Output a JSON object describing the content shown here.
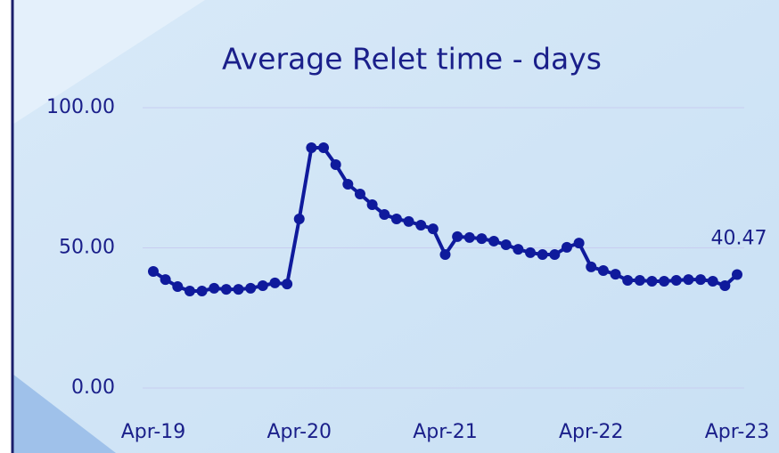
{
  "chart_data": {
    "type": "line",
    "title": "Average Relet time - days",
    "categories": [
      "Apr-19",
      null,
      null,
      null,
      null,
      null,
      null,
      null,
      null,
      null,
      null,
      null,
      "Apr-20",
      null,
      null,
      null,
      null,
      null,
      null,
      null,
      null,
      null,
      null,
      null,
      "Apr-21",
      null,
      null,
      null,
      null,
      null,
      null,
      null,
      null,
      null,
      null,
      null,
      "Apr-22",
      null,
      null,
      null,
      null,
      null,
      null,
      null,
      null,
      null,
      null,
      null,
      "Apr-23"
    ],
    "series": [
      {
        "name": "Average Relet time",
        "color": "#0f1a9c",
        "values": [
          41.6,
          38.7,
          36.2,
          34.6,
          34.6,
          35.6,
          35.2,
          35.2,
          35.6,
          36.5,
          37.5,
          37.1,
          60.3,
          85.7,
          85.7,
          79.7,
          72.7,
          69.2,
          65.4,
          61.9,
          60.3,
          59.4,
          58.1,
          56.8,
          47.6,
          54.0,
          53.7,
          53.3,
          52.4,
          51.1,
          49.5,
          48.3,
          47.6,
          47.6,
          50.2,
          51.7,
          43.2,
          41.9,
          40.6,
          38.4,
          38.4,
          38.1,
          38.1,
          38.4,
          38.7,
          38.7,
          38.1,
          36.5,
          40.47
        ]
      }
    ],
    "ylim": [
      0,
      100
    ],
    "yticks": [
      {
        "value": 0,
        "label": "0.00"
      },
      {
        "value": 50,
        "label": "50.00"
      },
      {
        "value": 100,
        "label": "100.00"
      }
    ],
    "grid": true
  }
}
